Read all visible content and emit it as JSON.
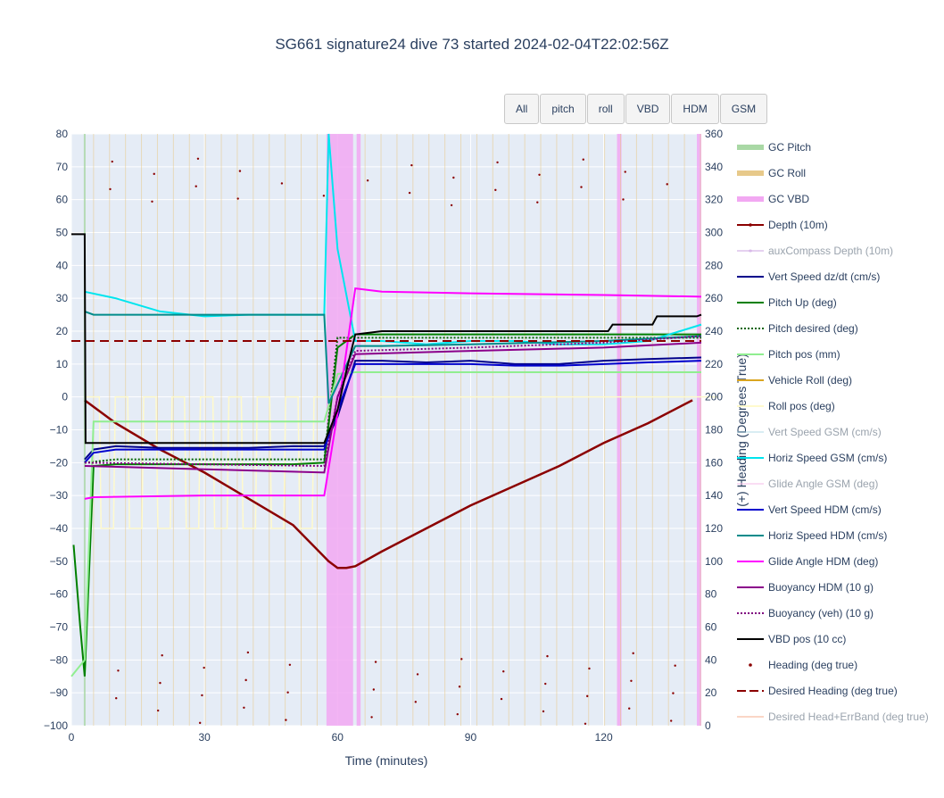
{
  "title": "SG661 signature24 dive 73 started 2024-02-04T22:02:56Z",
  "buttons": [
    "All",
    "pitch",
    "roll",
    "VBD",
    "HDM",
    "GSM"
  ],
  "chart_data": {
    "type": "line",
    "xlabel": "Time (minutes)",
    "ylabel_left": "",
    "ylabel_right": "(+) Heading (Degrees True)",
    "xlim": [
      0,
      142
    ],
    "ylim_left": [
      -100,
      80
    ],
    "ylim_right": [
      0,
      360
    ],
    "x_ticks": [
      0,
      30,
      60,
      90,
      120
    ],
    "y_ticks_left": [
      80,
      70,
      60,
      50,
      40,
      30,
      20,
      10,
      0,
      -10,
      -20,
      -30,
      -40,
      -50,
      -60,
      -70,
      -80,
      -90,
      -100
    ],
    "y_ticks_right": [
      360,
      340,
      320,
      300,
      280,
      260,
      240,
      220,
      200,
      180,
      160,
      140,
      120,
      100,
      80,
      60,
      40,
      20,
      0
    ],
    "legend": [
      {
        "name": "GC Pitch",
        "color": "#a9d8a5",
        "style": "band",
        "visible": true
      },
      {
        "name": "GC Roll",
        "color": "#e7c98a",
        "style": "band",
        "visible": true
      },
      {
        "name": "GC VBD",
        "color": "#f2a8f2",
        "style": "band",
        "visible": true
      },
      {
        "name": "Depth (10m)",
        "color": "#8b0000",
        "style": "line-marker",
        "visible": true
      },
      {
        "name": "auxCompass Depth (10m)",
        "color": "#c79be0",
        "style": "line-marker",
        "visible": false
      },
      {
        "name": "Vert Speed dz/dt (cm/s)",
        "color": "#00008b",
        "style": "line",
        "visible": true
      },
      {
        "name": "Pitch Up (deg)",
        "color": "#008000",
        "style": "line",
        "visible": true
      },
      {
        "name": "Pitch desired (deg)",
        "color": "#006400",
        "style": "dot",
        "visible": true
      },
      {
        "name": "Pitch pos (mm)",
        "color": "#90ee90",
        "style": "line",
        "visible": true
      },
      {
        "name": "Vehicle Roll (deg)",
        "color": "#daa520",
        "style": "line",
        "visible": true
      },
      {
        "name": "Roll pos (deg)",
        "color": "#fffacd",
        "style": "line",
        "visible": true
      },
      {
        "name": "Vert Speed GSM (cm/s)",
        "color": "#add8e6",
        "style": "line",
        "visible": false
      },
      {
        "name": "Horiz Speed GSM (cm/s)",
        "color": "#00e5ee",
        "style": "line",
        "visible": true
      },
      {
        "name": "Glide Angle GSM (deg)",
        "color": "#f4b6e8",
        "style": "line",
        "visible": false
      },
      {
        "name": "Vert Speed HDM (cm/s)",
        "color": "#0000cd",
        "style": "line",
        "visible": true
      },
      {
        "name": "Horiz Speed HDM (cm/s)",
        "color": "#008b8b",
        "style": "line",
        "visible": true
      },
      {
        "name": "Glide Angle HDM (deg)",
        "color": "#ff00ff",
        "style": "line",
        "visible": true
      },
      {
        "name": "Buoyancy HDM (10 g)",
        "color": "#8b008b",
        "style": "line",
        "visible": true
      },
      {
        "name": "Buoyancy (veh) (10 g)",
        "color": "#800080",
        "style": "dot",
        "visible": true
      },
      {
        "name": "VBD pos (10 cc)",
        "color": "#000000",
        "style": "line",
        "visible": true
      },
      {
        "name": "Heading (deg true)",
        "color": "#8b0000",
        "style": "marker",
        "visible": true
      },
      {
        "name": "Desired Heading (deg true)",
        "color": "#8b0000",
        "style": "dash",
        "visible": true
      },
      {
        "name": "Desired Head+ErrBand (deg true)",
        "color": "#f4a582",
        "style": "line",
        "visible": false
      }
    ],
    "series": [
      {
        "name": "Depth (10m)",
        "axis": "left",
        "x": [
          3,
          10,
          20,
          30,
          40,
          50,
          58,
          60,
          62,
          64,
          70,
          80,
          90,
          100,
          110,
          120,
          130,
          140
        ],
        "y": [
          -1,
          -8,
          -16,
          -23,
          -31,
          -39,
          -50,
          -52,
          -52,
          -51.5,
          -47,
          -40,
          -33,
          -27,
          -21,
          -14,
          -8,
          -1
        ]
      },
      {
        "name": "Vert Speed dz/dt (cm/s)",
        "axis": "left",
        "x": [
          3,
          5,
          10,
          20,
          30,
          40,
          50,
          57,
          60,
          64,
          70,
          80,
          90,
          100,
          110,
          120,
          130,
          142
        ],
        "y": [
          -19,
          -16,
          -15,
          -15.5,
          -15.5,
          -15.5,
          -15,
          -15,
          -6,
          11,
          11,
          10.5,
          11,
          10,
          10,
          11,
          11.5,
          12
        ]
      },
      {
        "name": "Pitch Up (deg)",
        "axis": "left",
        "x": [
          0.5,
          2,
          3,
          5,
          10,
          20,
          30,
          40,
          50,
          57,
          60,
          64,
          70,
          80,
          90,
          100,
          110,
          120,
          130,
          142
        ],
        "y": [
          -45,
          -70,
          -85,
          -21,
          -20.5,
          -20.5,
          -20.5,
          -20.5,
          -20.5,
          -20,
          15,
          19,
          19,
          19,
          19,
          19,
          19,
          19,
          19,
          19
        ]
      },
      {
        "name": "Pitch desired (deg)",
        "axis": "left",
        "x": [
          3,
          10,
          30,
          57,
          60,
          64,
          90,
          120,
          142
        ],
        "y": [
          -20,
          -19,
          -19,
          -19,
          18,
          18,
          18,
          18,
          18
        ]
      },
      {
        "name": "Pitch pos (mm)",
        "axis": "left",
        "x": [
          0,
          3,
          5,
          30,
          57,
          60,
          64,
          90,
          120,
          142
        ],
        "y": [
          -85,
          -80,
          -7.5,
          -7.5,
          -7.5,
          7,
          7.5,
          7.5,
          7.5,
          7.5
        ]
      },
      {
        "name": "Horiz Speed GSM (cm/s)",
        "axis": "left",
        "x": [
          3,
          10,
          20,
          30,
          40,
          50,
          57,
          58,
          60,
          64,
          70,
          80,
          90,
          100,
          110,
          120,
          130,
          142
        ],
        "y": [
          32,
          30,
          26,
          24.5,
          25,
          25,
          25,
          80,
          45,
          17,
          17,
          16,
          17,
          17,
          16,
          16,
          17,
          22
        ]
      },
      {
        "name": "Vert Speed HDM (cm/s)",
        "axis": "left",
        "x": [
          3,
          5,
          10,
          20,
          30,
          40,
          50,
          57,
          60,
          64,
          70,
          80,
          90,
          100,
          110,
          120,
          130,
          142
        ],
        "y": [
          -20,
          -17,
          -16,
          -16,
          -16,
          -16,
          -16,
          -16,
          -4,
          10,
          10,
          10,
          10,
          9.5,
          9.5,
          10,
          10.5,
          11
        ]
      },
      {
        "name": "Horiz Speed HDM (cm/s)",
        "axis": "left",
        "x": [
          3,
          5,
          30,
          57,
          58,
          64,
          70,
          90,
          120,
          142
        ],
        "y": [
          26,
          25,
          25,
          25,
          -2,
          15.5,
          15.5,
          16,
          17,
          18.5
        ]
      },
      {
        "name": "Glide Angle HDM (deg)",
        "axis": "left",
        "x": [
          3,
          5,
          30,
          57,
          60,
          64,
          70,
          90,
          120,
          142
        ],
        "y": [
          -31,
          -30.5,
          -30,
          -30,
          -5,
          33,
          32,
          31.5,
          31,
          30.5
        ]
      },
      {
        "name": "Buoyancy HDM (10 g)",
        "axis": "left",
        "x": [
          3,
          30,
          57,
          60,
          64,
          90,
          120,
          142
        ],
        "y": [
          -21,
          -22,
          -23,
          0,
          13,
          14,
          15,
          16.5
        ]
      },
      {
        "name": "Buoyancy (veh) (10 g)",
        "axis": "left",
        "x": [
          3,
          30,
          57,
          60,
          64,
          90,
          120,
          142
        ],
        "y": [
          -20,
          -20.5,
          -21,
          0,
          14,
          15,
          16.5,
          18.5
        ]
      },
      {
        "name": "VBD pos (10 cc)",
        "axis": "left",
        "x": [
          0,
          3,
          3.2,
          5,
          30,
          57,
          60,
          62,
          64,
          70,
          90,
          110,
          121,
          122,
          131,
          132,
          141,
          142
        ],
        "y": [
          49.5,
          49.5,
          -14,
          -14,
          -14,
          -14,
          -4,
          8,
          19,
          20,
          20,
          20,
          20,
          22,
          22,
          24.5,
          24.5,
          25
        ]
      },
      {
        "name": "Desired Heading (deg true)",
        "axis": "right",
        "x": [
          0,
          142
        ],
        "y": [
          234,
          234
        ]
      }
    ],
    "bands": {
      "GC VBD": [
        [
          57.5,
          63.5
        ],
        [
          64.3,
          65.2
        ],
        [
          123,
          124
        ],
        [
          141,
          142
        ]
      ]
    }
  }
}
